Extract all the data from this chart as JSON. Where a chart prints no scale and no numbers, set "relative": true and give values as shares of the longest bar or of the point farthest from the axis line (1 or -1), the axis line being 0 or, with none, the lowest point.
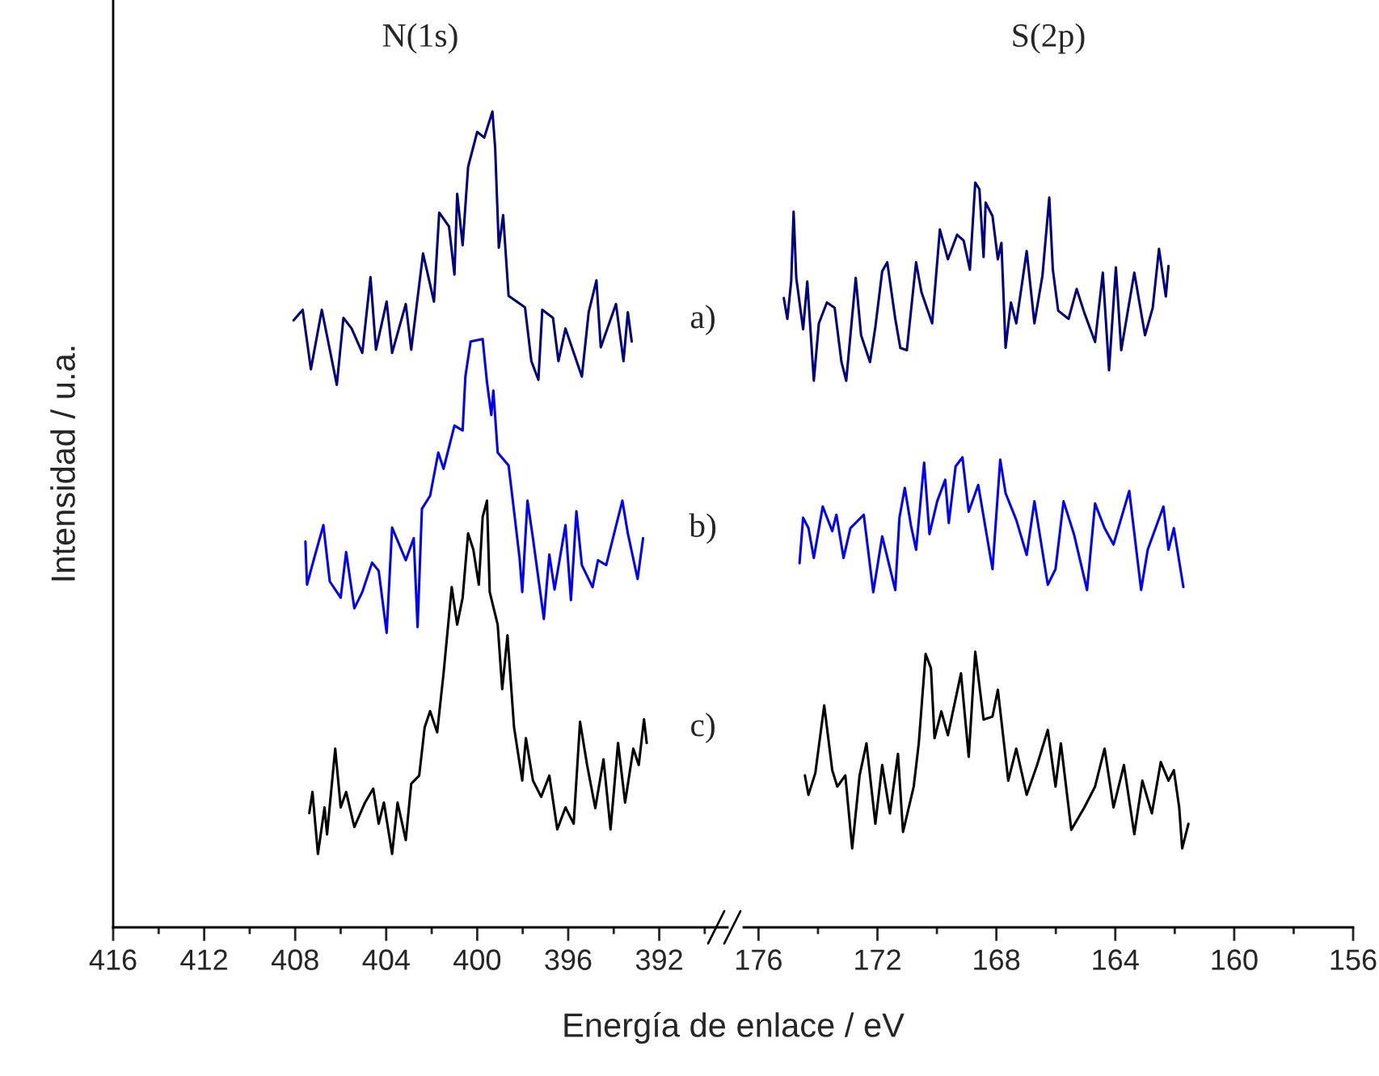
{
  "chart_data": [
    {
      "type": "line",
      "title": "N(1s)",
      "xlabel": "Energía de enlace / eV",
      "ylabel": "Intensidad / u.a.",
      "relative": true,
      "xlim": [
        416,
        389
      ],
      "xticks": [
        416,
        412,
        408,
        404,
        400,
        396,
        392
      ],
      "annotations": [
        "a)",
        "b)",
        "c)"
      ],
      "series": [
        {
          "color": "#000080",
          "x": [
            408.07,
            407.67,
            407.31,
            406.83,
            406.17,
            405.88,
            405.52,
            405.05,
            404.69,
            404.45,
            403.98,
            403.74,
            403.14,
            402.9,
            402.38,
            401.9,
            401.67,
            401.24,
            401.0,
            400.88,
            400.64,
            400.4,
            400.0,
            399.69,
            399.33,
            399.21,
            399.05,
            398.86,
            398.62,
            397.9,
            397.62,
            397.31,
            397.14,
            396.67,
            396.43,
            396.12,
            395.4,
            395.1,
            394.76,
            394.57,
            393.9,
            393.57,
            393.38,
            393.21
          ],
          "values": [
            0.744,
            0.757,
            0.684,
            0.757,
            0.665,
            0.747,
            0.734,
            0.704,
            0.797,
            0.708,
            0.767,
            0.704,
            0.764,
            0.708,
            0.826,
            0.767,
            0.876,
            0.859,
            0.8,
            0.899,
            0.836,
            0.932,
            0.975,
            0.968,
            1.0,
            0.955,
            0.833,
            0.873,
            0.774,
            0.76,
            0.694,
            0.671,
            0.757,
            0.747,
            0.694,
            0.734,
            0.675,
            0.754,
            0.793,
            0.711,
            0.764,
            0.694,
            0.754,
            0.718
          ]
        },
        {
          "color": "#0000ff",
          "x": [
            407.55,
            407.48,
            407.19,
            406.76,
            406.48,
            406.0,
            405.76,
            405.4,
            405.05,
            404.62,
            404.33,
            403.98,
            403.74,
            403.14,
            402.79,
            402.62,
            402.43,
            402.07,
            401.71,
            401.48,
            401.0,
            400.64,
            400.52,
            400.29,
            399.76,
            399.57,
            399.38,
            399.29,
            399.1,
            398.62,
            398.38,
            398.14,
            398.02,
            397.79,
            397.55,
            397.07,
            396.83,
            396.6,
            396.12,
            395.88,
            395.64,
            395.4,
            394.93,
            394.69,
            394.33,
            393.62,
            393.38,
            392.95,
            392.71
          ],
          "values": [
            0.473,
            0.42,
            0.45,
            0.493,
            0.424,
            0.404,
            0.46,
            0.391,
            0.411,
            0.447,
            0.437,
            0.361,
            0.49,
            0.45,
            0.477,
            0.368,
            0.513,
            0.529,
            0.582,
            0.562,
            0.615,
            0.609,
            0.675,
            0.718,
            0.721,
            0.668,
            0.628,
            0.658,
            0.582,
            0.566,
            0.51,
            0.453,
            0.411,
            0.523,
            0.477,
            0.378,
            0.457,
            0.414,
            0.493,
            0.401,
            0.51,
            0.444,
            0.417,
            0.45,
            0.444,
            0.523,
            0.483,
            0.427,
            0.477
          ]
        },
        {
          "color": "#000000",
          "x": [
            407.38,
            407.24,
            407.0,
            406.71,
            406.6,
            406.24,
            406.0,
            405.76,
            405.4,
            404.93,
            404.57,
            404.33,
            404.1,
            403.74,
            403.5,
            403.14,
            402.9,
            402.55,
            402.31,
            402.07,
            401.76,
            401.48,
            401.12,
            400.88,
            400.64,
            400.4,
            400.17,
            399.93,
            399.76,
            399.57,
            399.45,
            399.1,
            398.9,
            398.67,
            398.38,
            398.02,
            397.86,
            397.55,
            397.19,
            396.83,
            396.48,
            396.12,
            395.76,
            395.48,
            395.17,
            394.81,
            394.45,
            394.14,
            393.81,
            393.5,
            393.14,
            392.9,
            392.67,
            392.55
          ],
          "values": [
            0.14,
            0.166,
            0.09,
            0.147,
            0.114,
            0.219,
            0.147,
            0.166,
            0.123,
            0.153,
            0.17,
            0.127,
            0.153,
            0.09,
            0.153,
            0.107,
            0.176,
            0.186,
            0.245,
            0.265,
            0.239,
            0.311,
            0.417,
            0.371,
            0.404,
            0.483,
            0.463,
            0.42,
            0.503,
            0.523,
            0.411,
            0.371,
            0.292,
            0.358,
            0.245,
            0.18,
            0.232,
            0.18,
            0.16,
            0.186,
            0.12,
            0.147,
            0.127,
            0.252,
            0.199,
            0.146,
            0.206,
            0.12,
            0.226,
            0.153,
            0.219,
            0.199,
            0.255,
            0.226
          ]
        }
      ]
    },
    {
      "type": "line",
      "title": "S(2p)",
      "relative": true,
      "xlim": [
        176.5,
        156
      ],
      "xticks": [
        176,
        172,
        168,
        164,
        160,
        156
      ],
      "series": [
        {
          "color": "#000080",
          "x": [
            175.15,
            175.03,
            174.9,
            174.82,
            174.73,
            174.5,
            174.36,
            174.14,
            173.97,
            173.7,
            173.44,
            173.21,
            173.05,
            172.73,
            172.55,
            172.25,
            172.07,
            171.84,
            171.67,
            171.4,
            171.23,
            171.01,
            170.7,
            170.52,
            170.16,
            169.9,
            169.63,
            169.32,
            169.1,
            168.89,
            168.71,
            168.57,
            168.43,
            168.36,
            168.13,
            167.95,
            167.83,
            167.69,
            167.51,
            167.33,
            166.98,
            166.72,
            166.45,
            166.22,
            166.1,
            165.92,
            165.57,
            165.3,
            165.04,
            164.68,
            164.42,
            164.21,
            163.98,
            163.8,
            163.36,
            163.0,
            162.74,
            162.53,
            162.3,
            162.21
          ],
          "values": [
            0.845,
            0.817,
            0.868,
            0.961,
            0.872,
            0.803,
            0.867,
            0.734,
            0.811,
            0.839,
            0.832,
            0.759,
            0.734,
            0.872,
            0.795,
            0.759,
            0.806,
            0.881,
            0.893,
            0.817,
            0.778,
            0.775,
            0.893,
            0.853,
            0.811,
            0.937,
            0.897,
            0.93,
            0.922,
            0.883,
            1.0,
            0.991,
            0.9,
            0.973,
            0.955,
            0.897,
            0.919,
            0.778,
            0.839,
            0.811,
            0.908,
            0.811,
            0.875,
            0.98,
            0.883,
            0.828,
            0.817,
            0.857,
            0.825,
            0.786,
            0.879,
            0.748,
            0.886,
            0.775,
            0.879,
            0.795,
            0.832,
            0.911,
            0.847,
            0.888
          ]
        },
        {
          "color": "#0000ff",
          "x": [
            174.62,
            174.5,
            174.32,
            174.14,
            173.84,
            173.52,
            173.38,
            173.14,
            172.91,
            172.46,
            172.14,
            171.84,
            171.4,
            171.26,
            171.08,
            170.87,
            170.7,
            170.43,
            170.25,
            169.99,
            169.72,
            169.6,
            169.37,
            169.14,
            168.93,
            168.61,
            168.13,
            167.87,
            167.69,
            167.33,
            166.98,
            166.72,
            166.27,
            166.01,
            165.74,
            165.39,
            164.95,
            164.68,
            164.36,
            164.06,
            163.53,
            163.13,
            162.91,
            162.38,
            162.21,
            162.03,
            161.71
          ],
          "values": [
            0.489,
            0.55,
            0.536,
            0.496,
            0.565,
            0.532,
            0.554,
            0.496,
            0.536,
            0.554,
            0.45,
            0.525,
            0.453,
            0.55,
            0.59,
            0.539,
            0.507,
            0.624,
            0.528,
            0.572,
            0.601,
            0.543,
            0.619,
            0.631,
            0.558,
            0.594,
            0.481,
            0.628,
            0.583,
            0.547,
            0.5,
            0.572,
            0.46,
            0.481,
            0.572,
            0.528,
            0.453,
            0.569,
            0.536,
            0.514,
            0.586,
            0.453,
            0.507,
            0.565,
            0.507,
            0.536,
            0.457
          ]
        },
        {
          "color": "#000000",
          "x": [
            174.44,
            174.32,
            174.09,
            173.79,
            173.52,
            173.35,
            173.08,
            172.85,
            172.6,
            172.37,
            172.07,
            171.84,
            171.58,
            171.31,
            171.14,
            170.78,
            170.61,
            170.38,
            170.2,
            170.08,
            169.85,
            169.63,
            169.19,
            168.93,
            168.71,
            168.43,
            168.13,
            167.95,
            167.6,
            167.33,
            166.98,
            166.63,
            166.27,
            166.01,
            165.83,
            165.48,
            165.04,
            164.68,
            164.36,
            164.06,
            163.71,
            163.36,
            163.09,
            162.77,
            162.47,
            162.21,
            162.03,
            161.85,
            161.75,
            161.54
          ],
          "values": [
            0.204,
            0.178,
            0.207,
            0.298,
            0.211,
            0.189,
            0.204,
            0.106,
            0.204,
            0.247,
            0.139,
            0.218,
            0.153,
            0.233,
            0.128,
            0.189,
            0.247,
            0.367,
            0.348,
            0.254,
            0.29,
            0.258,
            0.341,
            0.229,
            0.37,
            0.279,
            0.283,
            0.319,
            0.197,
            0.24,
            0.178,
            0.218,
            0.265,
            0.189,
            0.247,
            0.131,
            0.161,
            0.189,
            0.24,
            0.161,
            0.218,
            0.125,
            0.197,
            0.153,
            0.222,
            0.197,
            0.211,
            0.161,
            0.106,
            0.139
          ]
        }
      ]
    }
  ]
}
